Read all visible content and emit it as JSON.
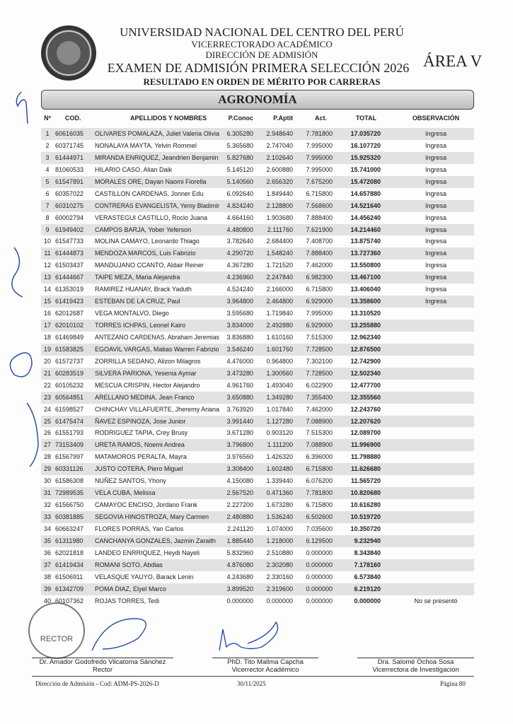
{
  "header": {
    "university": "UNIVERSIDAD NACIONAL DEL CENTRO DEL PERÚ",
    "vicerrectorado": "VICERRECTORADO ACADÉMICO",
    "direccion": "DIRECCIÓN DE ADMISIÓN",
    "exam": "EXAMEN DE ADMISIÓN PRIMERA SELECCIÓN 2026",
    "subtitle": "RESULTADO EN ORDEN DE MÉRITO POR CARRERAS",
    "area": "ÁREA V",
    "career": "AGRONOMÍA"
  },
  "table": {
    "columns": [
      "Nº",
      "COD.",
      "APELLIDOS Y NOMBRES",
      "P.Conoc",
      "P.Aptit",
      "Act.",
      "TOTAL",
      "OBSERVACIÓN"
    ],
    "rows": [
      [
        "1",
        "60616035",
        "OLIVARES POMALAZA, Juliet Valeria Olivia",
        "6.305280",
        "2.948640",
        "7.781800",
        "17.035720",
        "Ingresa"
      ],
      [
        "2",
        "60371745",
        "NONALAYA MAYTA, Yelvin Rommel",
        "5.365680",
        "2.747040",
        "7.995000",
        "16.107720",
        "Ingresa"
      ],
      [
        "3",
        "61444971",
        "MIRANDA ENRIQUEZ, Jeandrien Benjamin",
        "5.827680",
        "2.102640",
        "7.995000",
        "15.925320",
        "Ingresa"
      ],
      [
        "4",
        "81060533",
        "HILARIO CASO, Alian Daik",
        "5.145120",
        "2.600880",
        "7.995000",
        "15.741000",
        "Ingresa"
      ],
      [
        "5",
        "61547891",
        "MORALES ORE, Dayan Naomi Fiorella",
        "5.140560",
        "2.656320",
        "7.675200",
        "15.472080",
        "Ingresa"
      ],
      [
        "6",
        "60357022",
        "CASTILLON CARDENAS, Jonner Edu",
        "6.092640",
        "1.849440",
        "6.715800",
        "14.657880",
        "Ingresa"
      ],
      [
        "7",
        "60310275",
        "CONTRERAS EVANGELISTA, Yemy Bladimir",
        "4.824240",
        "2.128800",
        "7.568600",
        "14.521640",
        "Ingresa"
      ],
      [
        "8",
        "60002794",
        "VERASTEGUI CASTILLO, Rocio Juana",
        "4.664160",
        "1.903680",
        "7.888400",
        "14.456240",
        "Ingresa"
      ],
      [
        "9",
        "61949402",
        "CAMPOS BARJA, Yober Yeferson",
        "4.480800",
        "2.111760",
        "7.621900",
        "14.214460",
        "Ingresa"
      ],
      [
        "10",
        "61547733",
        "MOLINA CAMAYO, Leonardo Thiago",
        "3.782640",
        "2.684400",
        "7.408700",
        "13.875740",
        "Ingresa"
      ],
      [
        "11",
        "61444873",
        "MENDOZA MARCOS, Luis Fabrizio",
        "4.290720",
        "1.548240",
        "7.888400",
        "13.727360",
        "Ingresa"
      ],
      [
        "12",
        "61503437",
        "MANDUJANO CCANTO, Aldair Reiner",
        "4.367280",
        "1.721520",
        "7.462000",
        "13.550800",
        "Ingresa"
      ],
      [
        "13",
        "61444667",
        "TAIPE MEZA, Maria Alejandra",
        "4.236960",
        "2.247840",
        "6.982300",
        "13.467100",
        "Ingresa"
      ],
      [
        "14",
        "61353019",
        "RAMIREZ HUANAY, Brack Yaduth",
        "4.524240",
        "2.166000",
        "6.715800",
        "13.406040",
        "Ingresa"
      ],
      [
        "15",
        "61419423",
        "ESTEBAN DE LA CRUZ, Paul",
        "3.964800",
        "2.464800",
        "6.929000",
        "13.358600",
        "Ingresa"
      ],
      [
        "16",
        "62012687",
        "VEGA MONTALVO, Diego",
        "3.595680",
        "1.719840",
        "7.995000",
        "13.310520",
        ""
      ],
      [
        "17",
        "62010102",
        "TORRES ICHPAS, Leonel Kairo",
        "3.834000",
        "2.492880",
        "6.929000",
        "13.255880",
        ""
      ],
      [
        "18",
        "61469849",
        "ANTEZANO CARDENAS, Abraham Jeremias",
        "3.836880",
        "1.610160",
        "7.515300",
        "12.962340",
        ""
      ],
      [
        "19",
        "61583825",
        "EGOAVIL VARGAS, Matias Warren Fabrizio",
        "3.546240",
        "1.601760",
        "7.728500",
        "12.876500",
        ""
      ],
      [
        "20",
        "61572737",
        "ZORRILLA SEDANO, Alizon Milagros",
        "4.476000",
        "0.964800",
        "7.302100",
        "12.742900",
        ""
      ],
      [
        "21",
        "60283519",
        "SILVERA PARIONA, Yesenia Aymar",
        "3.473280",
        "1.300560",
        "7.728500",
        "12.502340",
        ""
      ],
      [
        "22",
        "60105232",
        "MESCUA CRISPIN, Hector Alejandro",
        "4.961760",
        "1.493040",
        "6.022900",
        "12.477700",
        ""
      ],
      [
        "23",
        "60564851",
        "ARELLANO MEDINA, Jean Franco",
        "3.650880",
        "1.349280",
        "7.355400",
        "12.355560",
        ""
      ],
      [
        "24",
        "61598527",
        "CHINCHAY VILLAFUERTE, Jheremy Ariana",
        "3.763920",
        "1.017840",
        "7.462000",
        "12.243760",
        ""
      ],
      [
        "25",
        "61475474",
        "ÑAVEZ ESPINOZA, Jose Junior",
        "3.991440",
        "1.127280",
        "7.088900",
        "12.207620",
        ""
      ],
      [
        "26",
        "61551793",
        "RODRIGUEZ TAPIA, Crey Brusy",
        "3.671280",
        "0.903120",
        "7.515300",
        "12.089700",
        ""
      ],
      [
        "27",
        "73153409",
        "URETA RAMOS, Noemi Andrea",
        "3.796800",
        "1.111200",
        "7.088900",
        "11.996900",
        ""
      ],
      [
        "28",
        "61567997",
        "MATAMOROS PERALTA, Mayra",
        "3.976560",
        "1.426320",
        "6.396000",
        "11.798880",
        ""
      ],
      [
        "29",
        "60331126",
        "JUSTO COTERA, Piero Miguel",
        "3.308400",
        "1.602480",
        "6.715800",
        "11.626680",
        ""
      ],
      [
        "30",
        "61586308",
        "NUÑEZ SANTOS, Yhony",
        "4.150080",
        "1.339440",
        "6.076200",
        "11.565720",
        ""
      ],
      [
        "31",
        "72989535",
        "VELA CUBA, Melissa",
        "2.567520",
        "0.471360",
        "7.781800",
        "10.820680",
        ""
      ],
      [
        "32",
        "61566750",
        "CAMAYOC ENCISO, Jordano Frank",
        "2.227200",
        "1.673280",
        "6.715800",
        "10.616280",
        ""
      ],
      [
        "33",
        "60381885",
        "SEGOVIA HINOSTROZA, Mary Carmen",
        "2.480880",
        "1.536240",
        "6.502600",
        "10.519720",
        ""
      ],
      [
        "34",
        "60663247",
        "FLORES PORRAS, Yan Carlos",
        "2.241120",
        "1.074000",
        "7.035600",
        "10.350720",
        ""
      ],
      [
        "35",
        "61311980",
        "CANCHANYA GONZALES, Jazmin Zaraith",
        "1.885440",
        "1.218000",
        "6.129500",
        "9.232940",
        ""
      ],
      [
        "36",
        "62021818",
        "LANDEO ENRRIQUEZ, Heydi Nayeli",
        "5.832960",
        "2.510880",
        "0.000000",
        "8.343840",
        ""
      ],
      [
        "37",
        "61419434",
        "ROMANI SOTO, Abdias",
        "4.876080",
        "2.302080",
        "0.000000",
        "7.178160",
        ""
      ],
      [
        "38",
        "61506911",
        "VELASQUE YAUYO, Barack Lenin",
        "4.243680",
        "2.330160",
        "0.000000",
        "6.573840",
        ""
      ],
      [
        "39",
        "61342709",
        "POMA DIAZ, Elyel Marco",
        "3.899520",
        "2.319600",
        "0.000000",
        "6.219120",
        ""
      ],
      [
        "40",
        "60107362",
        "ROJAS TORRES, Tedi",
        "0.000000",
        "0.000000",
        "0.000000",
        "0.000000",
        "No se presentó"
      ]
    ]
  },
  "signatures": [
    {
      "name": "Dr. Amador Godofredo Vilcatoma Sánchez",
      "role": "Rector"
    },
    {
      "name": "PhD. Tito Mallma Capcha",
      "role": "Vicerrector Académico"
    },
    {
      "name": "Dra. Salomé Ochoa Sosa",
      "role": "Vicerrectora de Investigación"
    }
  ],
  "stamp_text": "RECTOR",
  "footer": {
    "code": "Dirección de Admisión - Cod: ADM-PS-2026-D",
    "date": "30/11/2025",
    "page": "Página 80"
  },
  "colors": {
    "row_shade": "#e2e2e2",
    "ink": "#2a4fa8"
  }
}
